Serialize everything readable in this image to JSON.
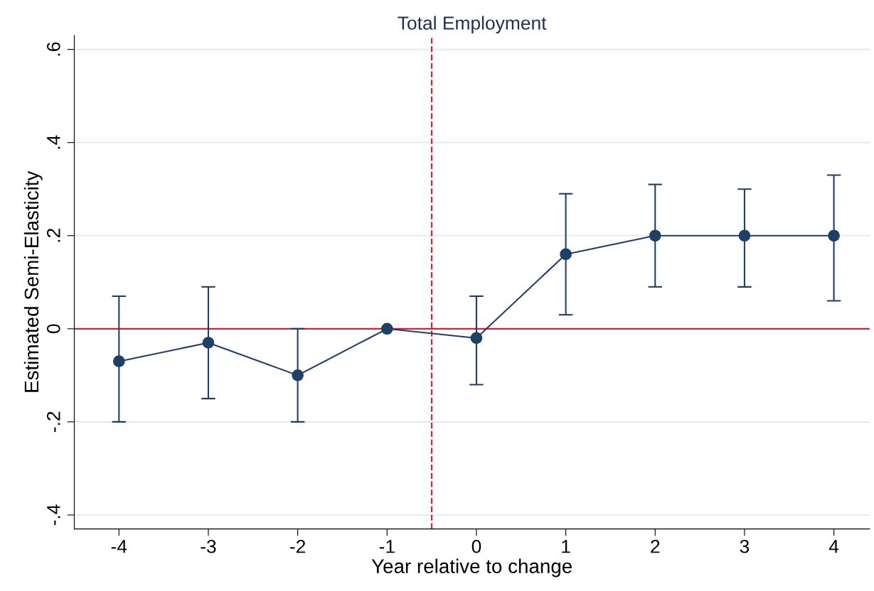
{
  "chart_data": {
    "type": "line",
    "title": "Total Employment",
    "xlabel": "Year relative to change",
    "ylabel": "Estimated Semi-Elasticity",
    "x": [
      -4,
      -3,
      -2,
      -1,
      0,
      1,
      2,
      3,
      4
    ],
    "series": [
      {
        "color": "#1f3f66",
        "values": [
          -0.07,
          -0.03,
          -0.1,
          0.0,
          -0.02,
          0.16,
          0.2,
          0.2,
          0.2
        ],
        "errors": [
          [
            -0.2,
            0.07
          ],
          [
            -0.15,
            0.09
          ],
          [
            -0.2,
            0.0
          ],
          null,
          [
            -0.12,
            0.07
          ],
          [
            0.03,
            0.29
          ],
          [
            0.09,
            0.31
          ],
          [
            0.09,
            0.3
          ],
          [
            0.06,
            0.33
          ]
        ]
      }
    ],
    "marker": "circle",
    "xlim": [
      -4.5,
      4.4
    ],
    "xticks": [
      -4,
      -3,
      -2,
      -1,
      0,
      1,
      2,
      3,
      4
    ],
    "ylim": [
      -0.43,
      0.63
    ],
    "yticks": [
      {
        "value": -0.4,
        "label": "-.4"
      },
      {
        "value": -0.2,
        "label": "-.2"
      },
      {
        "value": 0,
        "label": "0"
      },
      {
        "value": 0.2,
        "label": ".2"
      },
      {
        "value": 0.4,
        "label": ".4"
      },
      {
        "value": 0.6,
        "label": ".6"
      }
    ],
    "grid": "y",
    "ref_lines": [
      {
        "axis": "y",
        "value": 0,
        "color": "#d0203a",
        "line_style": "solid"
      },
      {
        "axis": "x",
        "value": -0.5,
        "color": "#d0203a",
        "line_style": "dashed"
      }
    ]
  }
}
